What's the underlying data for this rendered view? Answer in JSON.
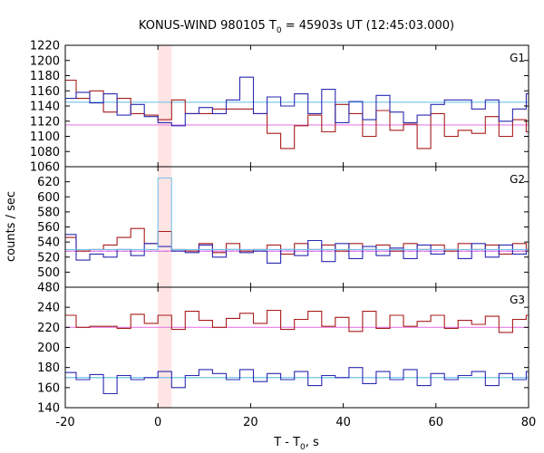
{
  "chart_data": {
    "type": "line",
    "title": "KONUS-WIND 980105 T0 = 45903s UT (12:45:03.000)",
    "title_parts": {
      "prefix": "KONUS-WIND 980105 T",
      "sub": "0",
      "suffix": " = 45903s UT (12:45:03.000)"
    },
    "xlabel_parts": {
      "prefix": "T - T",
      "sub": "0",
      "suffix": ", s"
    },
    "ylabel": "counts / sec",
    "xlim": [
      -20,
      80
    ],
    "x_ticks": [
      -20,
      0,
      20,
      40,
      60,
      80
    ],
    "x_tick_labels": [
      "-20",
      "0",
      "20",
      "40",
      "60",
      "80"
    ],
    "highlight_interval": [
      0,
      2.944
    ],
    "highlight_color": "#ffe4e4",
    "bin_width": 2.944,
    "bin_start": -20.6,
    "colors": {
      "red": "#a81c1c",
      "blue": "#2a2ab0",
      "cyan": "#73c2eb",
      "pink": "#e87fe8"
    },
    "panels": [
      {
        "label": "G1",
        "ylim": [
          1060,
          1220
        ],
        "y_ticks": [
          1060,
          1080,
          1100,
          1120,
          1140,
          1160,
          1180,
          1200,
          1220
        ],
        "y_tick_labels": [
          "1060",
          "1080",
          "1100",
          "1120",
          "1140",
          "1160",
          "1180",
          "1200",
          "1220"
        ],
        "series": [
          {
            "color": "red",
            "values": [
              1174,
              1150,
              1160,
              1132,
              1150,
              1130,
              1128,
              1122,
              1148,
              1130,
              1130,
              1136,
              1136,
              1136,
              1130,
              1104,
              1084,
              1114,
              1128,
              1106,
              1142,
              1130,
              1100,
              1134,
              1108,
              1116,
              1084,
              1130,
              1100,
              1108,
              1104,
              1126,
              1100,
              1122,
              1106,
              1108,
              1104,
              1126,
              1112,
              1104,
              1106,
              1096,
              1140,
              1110,
              1104,
              1104,
              1090,
              1104,
              1086,
              1122,
              1132,
              1124,
              1128,
              1114,
              1136,
              1130,
              1146,
              1110,
              1124,
              1106,
              1128,
              1120,
              1144,
              1102,
              1122,
              1084,
              1124,
              1146,
              1110,
              1126,
              1134,
              1140
            ]
          },
          {
            "color": "blue",
            "values": [
              1150,
              1158,
              1144,
              1156,
              1128,
              1142,
              1126,
              1118,
              1114,
              1130,
              1138,
              1130,
              1148,
              1178,
              1130,
              1152,
              1140,
              1156,
              1130,
              1162,
              1118,
              1146,
              1122,
              1154,
              1132,
              1118,
              1128,
              1142,
              1148,
              1148,
              1136,
              1148,
              1120,
              1136,
              1156,
              1144,
              1124,
              1148,
              1142,
              1136,
              1152,
              1162,
              1134,
              1150,
              1164,
              1148,
              1166,
              1146,
              1130,
              1162,
              1140,
              1156,
              1132,
              1150,
              1128,
              1134,
              1160,
              1132,
              1150,
              1132,
              1140,
              1128,
              1170,
              1132,
              1150,
              1142,
              1160,
              1128,
              1164,
              1146,
              1160,
              1136
            ]
          }
        ],
        "levels": [
          {
            "color": "cyan",
            "value": 1145
          },
          {
            "color": "pink",
            "value": 1115
          }
        ]
      },
      {
        "label": "G2",
        "ylim": [
          480,
          640
        ],
        "y_ticks": [
          480,
          500,
          520,
          540,
          560,
          580,
          600,
          620
        ],
        "y_tick_labels": [
          "480",
          "500",
          "520",
          "540",
          "560",
          "580",
          "600",
          "620"
        ],
        "series": [
          {
            "color": "red",
            "values": [
              546,
              528,
              530,
              536,
              546,
              558,
              538,
              554,
              530,
              528,
              538,
              526,
              538,
              528,
              530,
              536,
              524,
              538,
              530,
              536,
              528,
              538,
              530,
              536,
              528,
              538,
              530,
              536,
              528,
              538,
              530,
              536,
              524,
              538,
              528,
              536,
              530,
              538,
              528,
              536,
              530,
              538,
              528,
              536,
              522,
              534,
              528,
              538,
              522,
              536,
              528,
              536,
              530,
              538,
              528,
              536,
              530,
              540,
              524,
              536,
              522,
              530,
              528,
              534,
              530,
              538,
              528,
              536,
              530,
              540,
              536,
              544
            ]
          },
          {
            "color": "blue",
            "values": [
              550,
              516,
              524,
              520,
              530,
              522,
              538,
              534,
              528,
              526,
              536,
              520,
              530,
              526,
              528,
              512,
              530,
              522,
              542,
              514,
              538,
              518,
              534,
              522,
              532,
              518,
              536,
              524,
              530,
              518,
              538,
              520,
              536,
              524,
              530,
              518,
              532,
              524,
              540,
              518,
              530,
              522,
              534,
              516,
              524,
              520,
              536,
              522,
              530,
              512,
              532,
              520,
              538,
              516,
              530,
              518,
              534,
              522,
              532,
              510,
              530,
              514,
              536,
              518,
              522,
              514,
              528,
              520,
              536,
              520,
              528,
              542
            ]
          },
          {
            "color": "cyan",
            "segments": [
              [
                -20.6,
                0,
                530
              ],
              [
                0,
                2.944,
                625
              ],
              [
                2.944,
                80,
                530
              ]
            ]
          }
        ],
        "levels": [
          {
            "color": "blue",
            "value": 528,
            "dashed": true
          },
          {
            "color": "pink",
            "value": 528
          }
        ]
      },
      {
        "label": "G3",
        "ylim": [
          140,
          260
        ],
        "y_ticks": [
          140,
          160,
          180,
          200,
          220,
          240
        ],
        "y_tick_labels": [
          "140",
          "160",
          "180",
          "200",
          "220",
          "240"
        ],
        "series": [
          {
            "color": "red",
            "values": [
              232,
              220,
              221,
              221,
              219,
              233,
              224,
              232,
              218,
              236,
              227,
              220,
              229,
              234,
              224,
              237,
              218,
              228,
              236,
              221,
              230,
              216,
              236,
              219,
              232,
              221,
              226,
              232,
              219,
              227,
              223,
              231,
              215,
              228,
              232,
              216,
              230,
              222,
              234,
              220,
              229,
              222,
              232,
              215,
              226,
              222,
              232,
              220,
              230,
              217,
              228,
              222,
              236,
              219,
              228,
              221,
              234,
              217,
              230,
              222,
              235,
              219,
              228,
              222,
              230,
              218,
              229,
              222,
              234,
              218,
              227,
              221
            ]
          },
          {
            "color": "blue",
            "values": [
              175,
              168,
              173,
              154,
              172,
              168,
              170,
              176,
              160,
              172,
              178,
              174,
              168,
              178,
              166,
              174,
              168,
              176,
              162,
              172,
              170,
              180,
              164,
              176,
              168,
              178,
              162,
              174,
              168,
              172,
              176,
              162,
              174,
              168,
              176,
              166,
              172,
              168,
              174,
              164,
              172,
              168,
              176,
              166,
              172,
              170,
              174,
              168,
              172,
              166,
              180,
              168,
              174,
              162,
              178,
              170,
              174,
              168,
              172,
              166,
              178,
              168,
              174,
              162,
              170,
              168,
              176,
              166,
              172,
              170,
              174,
              168
            ]
          }
        ],
        "levels": [
          {
            "color": "pink",
            "value": 220
          },
          {
            "color": "cyan",
            "value": 170
          }
        ]
      }
    ]
  }
}
